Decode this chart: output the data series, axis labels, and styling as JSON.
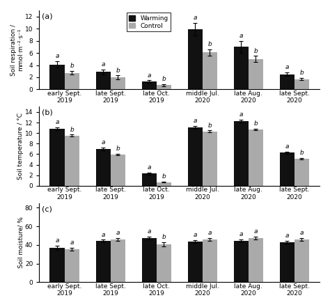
{
  "categories": [
    "early Sept.\n2019",
    "late Sept.\n2019",
    "late Oct.\n2019",
    "middle Jul.\n2020",
    "late Aug.\n2020",
    "late Sept.\n2020"
  ],
  "panel_a": {
    "label": "(a)",
    "ylabel": "Soil respiration /\nmmol·m⁻²·s⁻¹",
    "ylim": [
      0,
      13
    ],
    "yticks": [
      0,
      2,
      4,
      6,
      8,
      10,
      12
    ],
    "warming_vals": [
      4.1,
      2.9,
      1.3,
      9.9,
      7.0,
      2.5
    ],
    "control_vals": [
      2.7,
      2.0,
      0.7,
      6.1,
      5.0,
      1.7
    ],
    "warming_err": [
      0.5,
      0.4,
      0.2,
      1.0,
      1.0,
      0.3
    ],
    "control_err": [
      0.3,
      0.3,
      0.15,
      0.5,
      0.5,
      0.2
    ],
    "warming_labels": [
      "a",
      "a",
      "a",
      "a",
      "a",
      "a"
    ],
    "control_labels": [
      "b",
      "b",
      "b",
      "b",
      "b",
      "b"
    ]
  },
  "panel_b": {
    "label": "(b)",
    "ylabel": "Soil temperature / °C",
    "ylim": [
      0,
      15
    ],
    "yticks": [
      0,
      2,
      4,
      6,
      8,
      10,
      12,
      14
    ],
    "warming_vals": [
      10.8,
      7.0,
      2.3,
      11.1,
      12.3,
      6.3
    ],
    "control_vals": [
      9.5,
      5.9,
      0.7,
      10.3,
      10.7,
      5.1
    ],
    "warming_err": [
      0.3,
      0.3,
      0.2,
      0.3,
      0.3,
      0.2
    ],
    "control_err": [
      0.2,
      0.15,
      0.1,
      0.2,
      0.15,
      0.15
    ],
    "warming_labels": [
      "a",
      "a",
      "a",
      "a",
      "a",
      "a"
    ],
    "control_labels": [
      "b",
      "b",
      "b",
      "b",
      "b",
      "b"
    ]
  },
  "panel_c": {
    "label": "(c)",
    "ylabel": "Soil moisture/ %",
    "ylim": [
      0,
      85
    ],
    "yticks": [
      0,
      20,
      40,
      60,
      80
    ],
    "warming_vals": [
      37.0,
      44.0,
      47.5,
      43.5,
      44.5,
      43.0
    ],
    "control_vals": [
      35.5,
      46.0,
      40.5,
      46.0,
      47.5,
      46.0
    ],
    "warming_err": [
      2.0,
      1.5,
      1.5,
      1.5,
      1.5,
      1.5
    ],
    "control_err": [
      1.5,
      1.5,
      2.5,
      1.5,
      1.5,
      1.5
    ],
    "warming_labels": [
      "a",
      "a",
      "a",
      "a",
      "a",
      "a"
    ],
    "control_labels": [
      "a",
      "a",
      "b",
      "a",
      "a",
      "a"
    ]
  },
  "warming_color": "#111111",
  "control_color": "#aaaaaa",
  "bar_width": 0.32,
  "legend_labels": [
    "Warming",
    "Control"
  ],
  "font_size": 6.5,
  "panel_label_size": 8,
  "tick_size": 6.5
}
